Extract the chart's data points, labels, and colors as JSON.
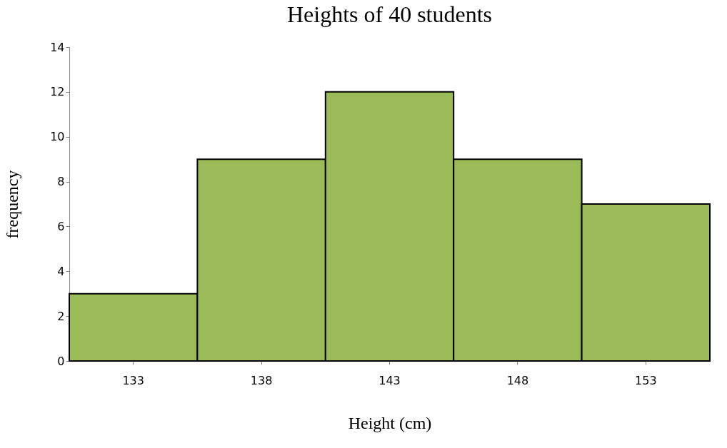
{
  "chart_data": {
    "type": "bar",
    "title": "Heights of 40 students",
    "xlabel": "Height (cm)",
    "ylabel": "frequency",
    "categories": [
      "133",
      "138",
      "143",
      "148",
      "153"
    ],
    "values": [
      3,
      9,
      12,
      9,
      7
    ],
    "color": "#9bbb59",
    "ylim": [
      0,
      14
    ],
    "yticks": [
      0,
      2,
      4,
      6,
      8,
      10,
      12,
      14
    ],
    "grid": false
  }
}
